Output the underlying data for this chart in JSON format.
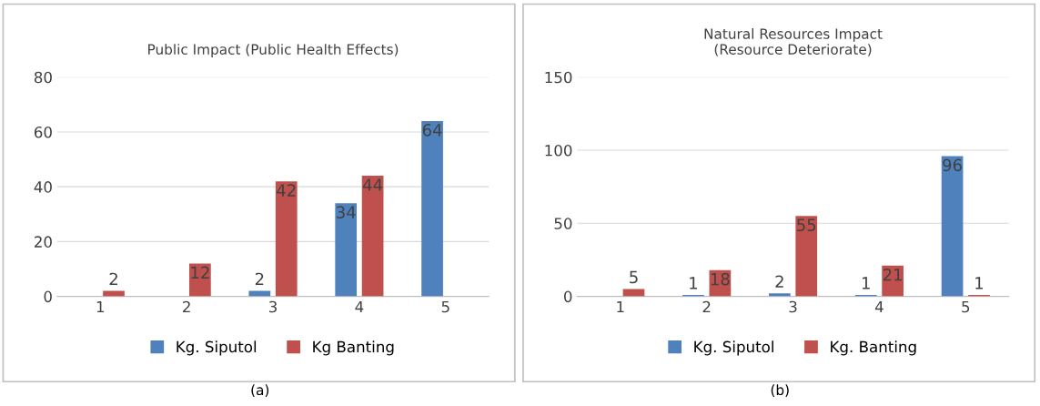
{
  "chart_data": [
    {
      "type": "bar",
      "title": "Public Impact (Public Health Effects)",
      "categories": [
        "1",
        "2",
        "3",
        "4",
        "5"
      ],
      "series": [
        {
          "name": "Kg. Siputol",
          "color": "#4f81bd",
          "values": [
            null,
            null,
            2,
            34,
            64
          ]
        },
        {
          "name": "Kg Banting",
          "color": "#c0504d",
          "values": [
            2,
            12,
            42,
            44,
            null
          ]
        }
      ],
      "ylim": [
        0,
        80
      ],
      "yticks": [
        0,
        20,
        40,
        60,
        80
      ],
      "grid": "y",
      "legend": "bottom",
      "data_labels": true,
      "annotations": [
        "(a)"
      ]
    },
    {
      "type": "bar",
      "title": "Natural Resources Impact\n(Resource Deteriorate)",
      "categories": [
        "1",
        "2",
        "3",
        "4",
        "5"
      ],
      "series": [
        {
          "name": "Kg. Siputol",
          "color": "#4f81bd",
          "values": [
            null,
            1,
            2,
            1,
            96
          ]
        },
        {
          "name": "Kg. Banting",
          "color": "#c0504d",
          "values": [
            5,
            18,
            55,
            21,
            1
          ]
        }
      ],
      "ylim": [
        0,
        150
      ],
      "yticks": [
        0,
        50,
        100,
        150
      ],
      "grid": "y",
      "legend": "bottom",
      "data_labels": true,
      "annotations": [
        "(b)"
      ]
    }
  ]
}
